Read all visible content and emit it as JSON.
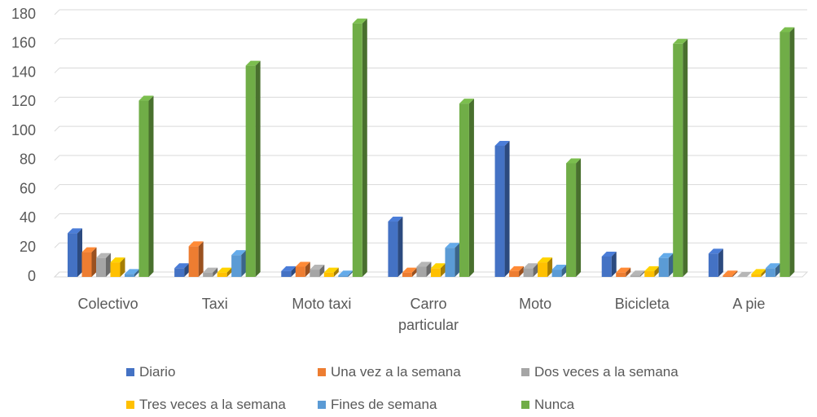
{
  "chart_data": {
    "type": "bar3d",
    "categories": [
      "Colectivo",
      "Taxi",
      "Moto taxi",
      "Carro particular",
      "Moto",
      "Bicicleta",
      "A pie"
    ],
    "series": [
      {
        "name": "Diario",
        "color": "#4472c4",
        "values": [
          30,
          6,
          4,
          38,
          90,
          14,
          16
        ]
      },
      {
        "name": "Una vez a la semana",
        "color": "#ed7d31",
        "values": [
          17,
          21,
          7,
          3,
          4,
          3,
          1
        ]
      },
      {
        "name": "Dos veces a la semana",
        "color": "#a5a5a5",
        "values": [
          13,
          3,
          5,
          7,
          6,
          1,
          0
        ]
      },
      {
        "name": "Tres veces a la semana",
        "color": "#ffc000",
        "values": [
          10,
          3,
          3,
          6,
          10,
          4,
          2
        ]
      },
      {
        "name": "Fines de semana",
        "color": "#5b9bd5",
        "values": [
          2,
          15,
          1,
          20,
          5,
          13,
          6
        ]
      },
      {
        "name": "Nunca",
        "color": "#70ad47",
        "values": [
          121,
          145,
          174,
          119,
          78,
          160,
          168
        ]
      }
    ],
    "ylim": [
      0,
      180
    ],
    "yticks": [
      0,
      20,
      40,
      60,
      80,
      100,
      120,
      140,
      160,
      180
    ],
    "grid": true
  }
}
